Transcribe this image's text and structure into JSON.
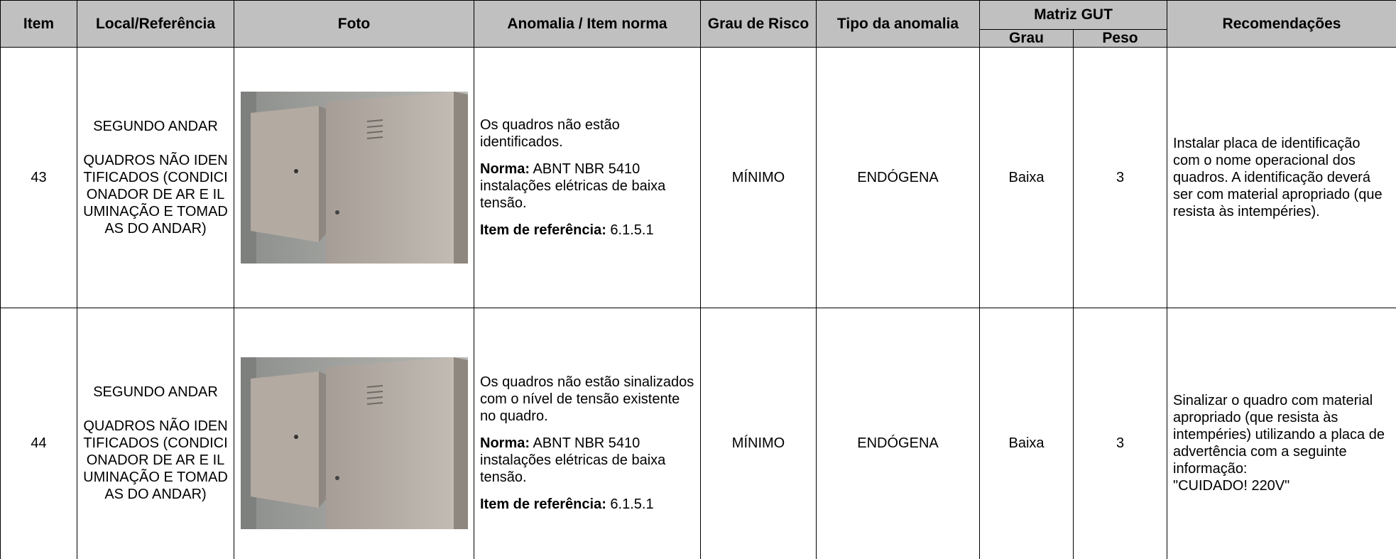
{
  "table": {
    "header": {
      "item": "Item",
      "local": "Local/Referência",
      "foto": "Foto",
      "anomalia": "Anomalia / Item norma",
      "grau_risco": "Grau de Risco",
      "tipo": "Tipo da anomalia",
      "matriz": "Matriz GUT",
      "grau": "Grau",
      "peso": "Peso",
      "recomendacoes": "Recomendações"
    },
    "rows": [
      {
        "item": 43,
        "local": [
          "SEGUNDO ANDAR",
          "QUADROS NÃO IDENTIFICADOS (CONDICIONADOR DE AR  E ILUMINAÇÃO E TOMADAS DO ANDAR)"
        ],
        "anomalia": {
          "descricao": "Os quadros não estão identificados.",
          "norma_label": "Norma:",
          "norma": "ABNT NBR 5410 instalações elétricas de baixa tensão.",
          "item_label": "Item de referência:",
          "item_ref": "6.1.5.1"
        },
        "grau_risco": "MÍNIMO",
        "tipo": "ENDÓGENA",
        "grau": "Baixa",
        "peso": 3,
        "recomendacoes": [
          "Instalar placa de identificação com o nome operacional dos quadros. A identificação deverá ser com material apropriado (que resista às intempéries)."
        ]
      },
      {
        "item": 44,
        "local": [
          "SEGUNDO ANDAR",
          "QUADROS NÃO IDENTIFICADOS (CONDICIONADOR DE AR  E ILUMINAÇÃO E TOMADAS DO ANDAR)"
        ],
        "anomalia": {
          "descricao": "Os quadros não estão sinalizados com o nível de tensão existente no quadro.",
          "norma_label": "Norma:",
          "norma": "ABNT NBR 5410 instalações elétricas de baixa tensão.",
          "item_label": "Item de referência:",
          "item_ref": "6.1.5.1"
        },
        "grau_risco": "MÍNIMO",
        "tipo": "ENDÓGENA",
        "grau": "Baixa",
        "peso": 3,
        "recomendacoes": [
          "Sinalizar o quadro com material apropriado (que resista às intempéries) utilizando a placa de advertência com a seguinte informação:",
          "\"CUIDADO! 220V\""
        ]
      }
    ]
  }
}
